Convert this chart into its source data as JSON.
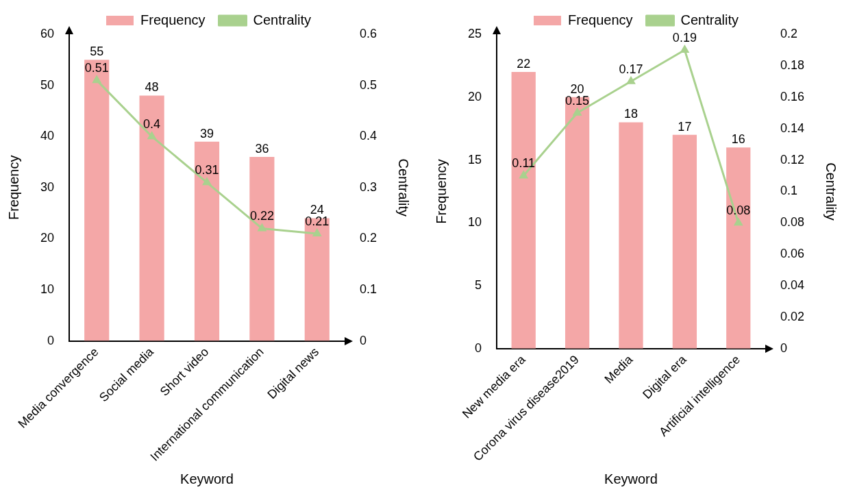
{
  "chart_data": [
    {
      "type": "bar",
      "categories": [
        "Media convergence",
        "Social media",
        "Short video",
        "International communication",
        "Digital news"
      ],
      "series": [
        {
          "name": "Frequency",
          "color": "#f4a7a7",
          "values": [
            55,
            48,
            39,
            36,
            24
          ]
        },
        {
          "name": "Centrality",
          "type": "line",
          "axis": "y2",
          "color": "#a9d18e",
          "values": [
            0.51,
            0.4,
            0.31,
            0.22,
            0.21
          ]
        }
      ],
      "xlabel": "Keyword",
      "ylabel": "Frequency",
      "y2label": "Centrality",
      "ylim": [
        0,
        60
      ],
      "yticks": [
        0,
        10,
        20,
        30,
        40,
        50,
        60
      ],
      "y2lim": [
        0,
        0.6
      ],
      "y2ticks": [
        0,
        0.1,
        0.2,
        0.3,
        0.4,
        0.5,
        0.6
      ],
      "legend": "top",
      "marker": "triangle",
      "data_labels": true
    },
    {
      "type": "bar",
      "categories": [
        "New media era",
        "Corona virus disease2019",
        "Media",
        "Digital era",
        "Artificial intelligence"
      ],
      "series": [
        {
          "name": "Frequency",
          "color": "#f4a7a7",
          "values": [
            22,
            20,
            18,
            17,
            16
          ]
        },
        {
          "name": "Centrality",
          "type": "line",
          "axis": "y2",
          "color": "#a9d18e",
          "values": [
            0.11,
            0.15,
            0.17,
            0.19,
            0.08
          ]
        }
      ],
      "xlabel": "Keyword",
      "ylabel": "Frequency",
      "y2label": "Centrality",
      "ylim": [
        0,
        25
      ],
      "yticks": [
        0,
        5,
        10,
        15,
        20,
        25
      ],
      "y2lim": [
        0,
        0.2
      ],
      "y2ticks": [
        0,
        0.02,
        0.04,
        0.06,
        0.08,
        0.1,
        0.12,
        0.14,
        0.16,
        0.18,
        0.2
      ],
      "legend": "top",
      "marker": "triangle",
      "data_labels": true
    }
  ]
}
